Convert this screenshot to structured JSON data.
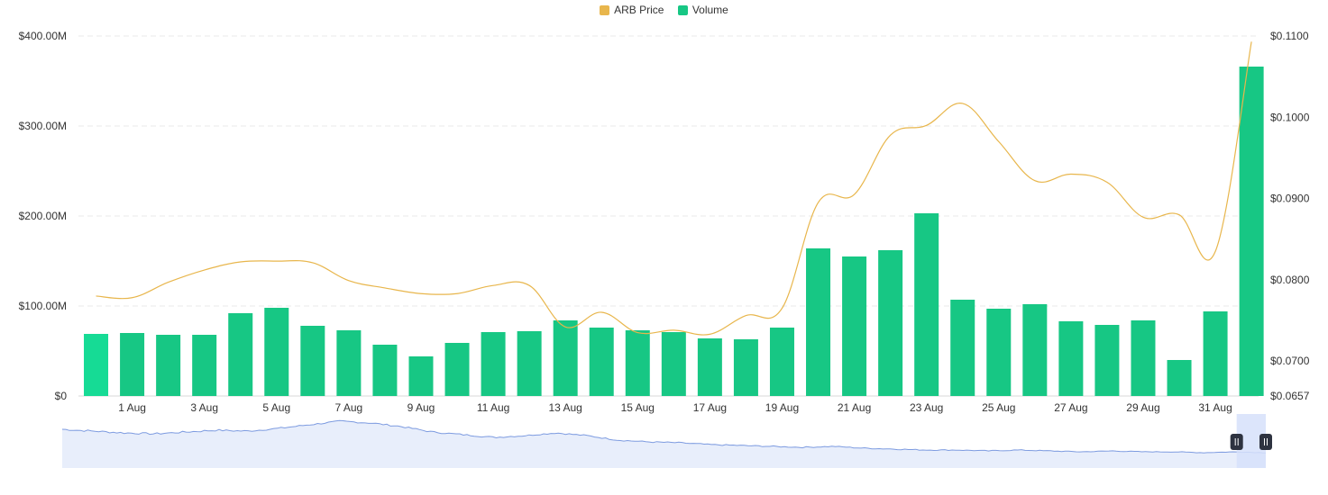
{
  "legend": {
    "price_label": "ARB Price",
    "volume_label": "Volume"
  },
  "colors": {
    "price": "#E8B64C",
    "volume": "#17C784",
    "volume_highlight": "#16DB95",
    "navigator_fill": "#E8EEFB",
    "navigator_line": "#7D9BE0",
    "navigator_selection": "#D6E1FA",
    "handle": "#2E3340",
    "grid": "#E9E9E9"
  },
  "chart_data": {
    "type": "bar",
    "title": "",
    "x_tick_labels": [
      "1 Aug",
      "3 Aug",
      "5 Aug",
      "7 Aug",
      "9 Aug",
      "11 Aug",
      "13 Aug",
      "15 Aug",
      "17 Aug",
      "19 Aug",
      "21 Aug",
      "23 Aug",
      "25 Aug",
      "27 Aug",
      "29 Aug",
      "31 Aug"
    ],
    "left_axis": {
      "ticks": [
        "$0",
        "$100.00M",
        "$200.00M",
        "$300.00M",
        "$400.00M"
      ],
      "tick_values": [
        0,
        100,
        200,
        300,
        400
      ],
      "range": [
        0,
        400
      ],
      "unit": "M USD"
    },
    "right_axis": {
      "ticks": [
        "$0.0657",
        "$0.0700",
        "$0.0800",
        "$0.0900",
        "$0.1000",
        "$0.1100"
      ],
      "tick_values": [
        0.0657,
        0.07,
        0.08,
        0.09,
        0.1,
        0.11
      ],
      "range": [
        0.0657,
        0.11
      ]
    },
    "series": [
      {
        "name": "Volume",
        "type": "bar",
        "axis": "left",
        "dates": [
          "31 Jul",
          "1 Aug",
          "2 Aug",
          "3 Aug",
          "4 Aug",
          "5 Aug",
          "6 Aug",
          "7 Aug",
          "8 Aug",
          "9 Aug",
          "10 Aug",
          "11 Aug",
          "12 Aug",
          "13 Aug",
          "14 Aug",
          "15 Aug",
          "16 Aug",
          "17 Aug",
          "18 Aug",
          "19 Aug",
          "20 Aug",
          "21 Aug",
          "22 Aug",
          "23 Aug",
          "24 Aug",
          "25 Aug",
          "26 Aug",
          "27 Aug",
          "28 Aug",
          "29 Aug",
          "30 Aug",
          "31 Aug",
          "1 Sep"
        ],
        "values": [
          69,
          70,
          68,
          68,
          92,
          98,
          78,
          73,
          57,
          44,
          59,
          71,
          72,
          84,
          76,
          73,
          71,
          64,
          63,
          76,
          164,
          155,
          162,
          203,
          107,
          97,
          102,
          83,
          79,
          84,
          40,
          94,
          366
        ]
      },
      {
        "name": "ARB Price",
        "type": "line",
        "axis": "right",
        "dates": [
          "31 Jul",
          "1 Aug",
          "2 Aug",
          "3 Aug",
          "4 Aug",
          "5 Aug",
          "6 Aug",
          "7 Aug",
          "8 Aug",
          "9 Aug",
          "10 Aug",
          "11 Aug",
          "12 Aug",
          "13 Aug",
          "14 Aug",
          "15 Aug",
          "16 Aug",
          "17 Aug",
          "18 Aug",
          "19 Aug",
          "20 Aug",
          "21 Aug",
          "22 Aug",
          "23 Aug",
          "24 Aug",
          "25 Aug",
          "26 Aug",
          "27 Aug",
          "28 Aug",
          "29 Aug",
          "30 Aug",
          "31 Aug",
          "1 Sep"
        ],
        "values": [
          0.078,
          0.0778,
          0.0797,
          0.0812,
          0.0822,
          0.0823,
          0.0821,
          0.0799,
          0.079,
          0.0783,
          0.0783,
          0.0793,
          0.0793,
          0.0742,
          0.076,
          0.0735,
          0.0738,
          0.0733,
          0.0756,
          0.0765,
          0.0895,
          0.0905,
          0.0978,
          0.099,
          0.1017,
          0.097,
          0.0922,
          0.093,
          0.092,
          0.0877,
          0.088,
          0.0835,
          0.1093
        ]
      }
    ],
    "grid": true,
    "legend_position": "top-center"
  },
  "navigator": {
    "values": [
      0.083,
      0.081,
      0.079,
      0.078,
      0.08,
      0.082,
      0.081,
      0.084,
      0.088,
      0.092,
      0.09,
      0.086,
      0.08,
      0.077,
      0.074,
      0.076,
      0.079,
      0.076,
      0.071,
      0.069,
      0.068,
      0.066,
      0.065,
      0.064,
      0.063,
      0.064,
      0.062,
      0.061,
      0.06,
      0.06,
      0.059,
      0.06,
      0.059,
      0.058,
      0.059,
      0.058,
      0.058,
      0.057,
      0.058,
      0.057
    ],
    "range": [
      0.04,
      0.1
    ],
    "selection_start_fraction": 0.9758,
    "selection_end_fraction": 1.0
  }
}
